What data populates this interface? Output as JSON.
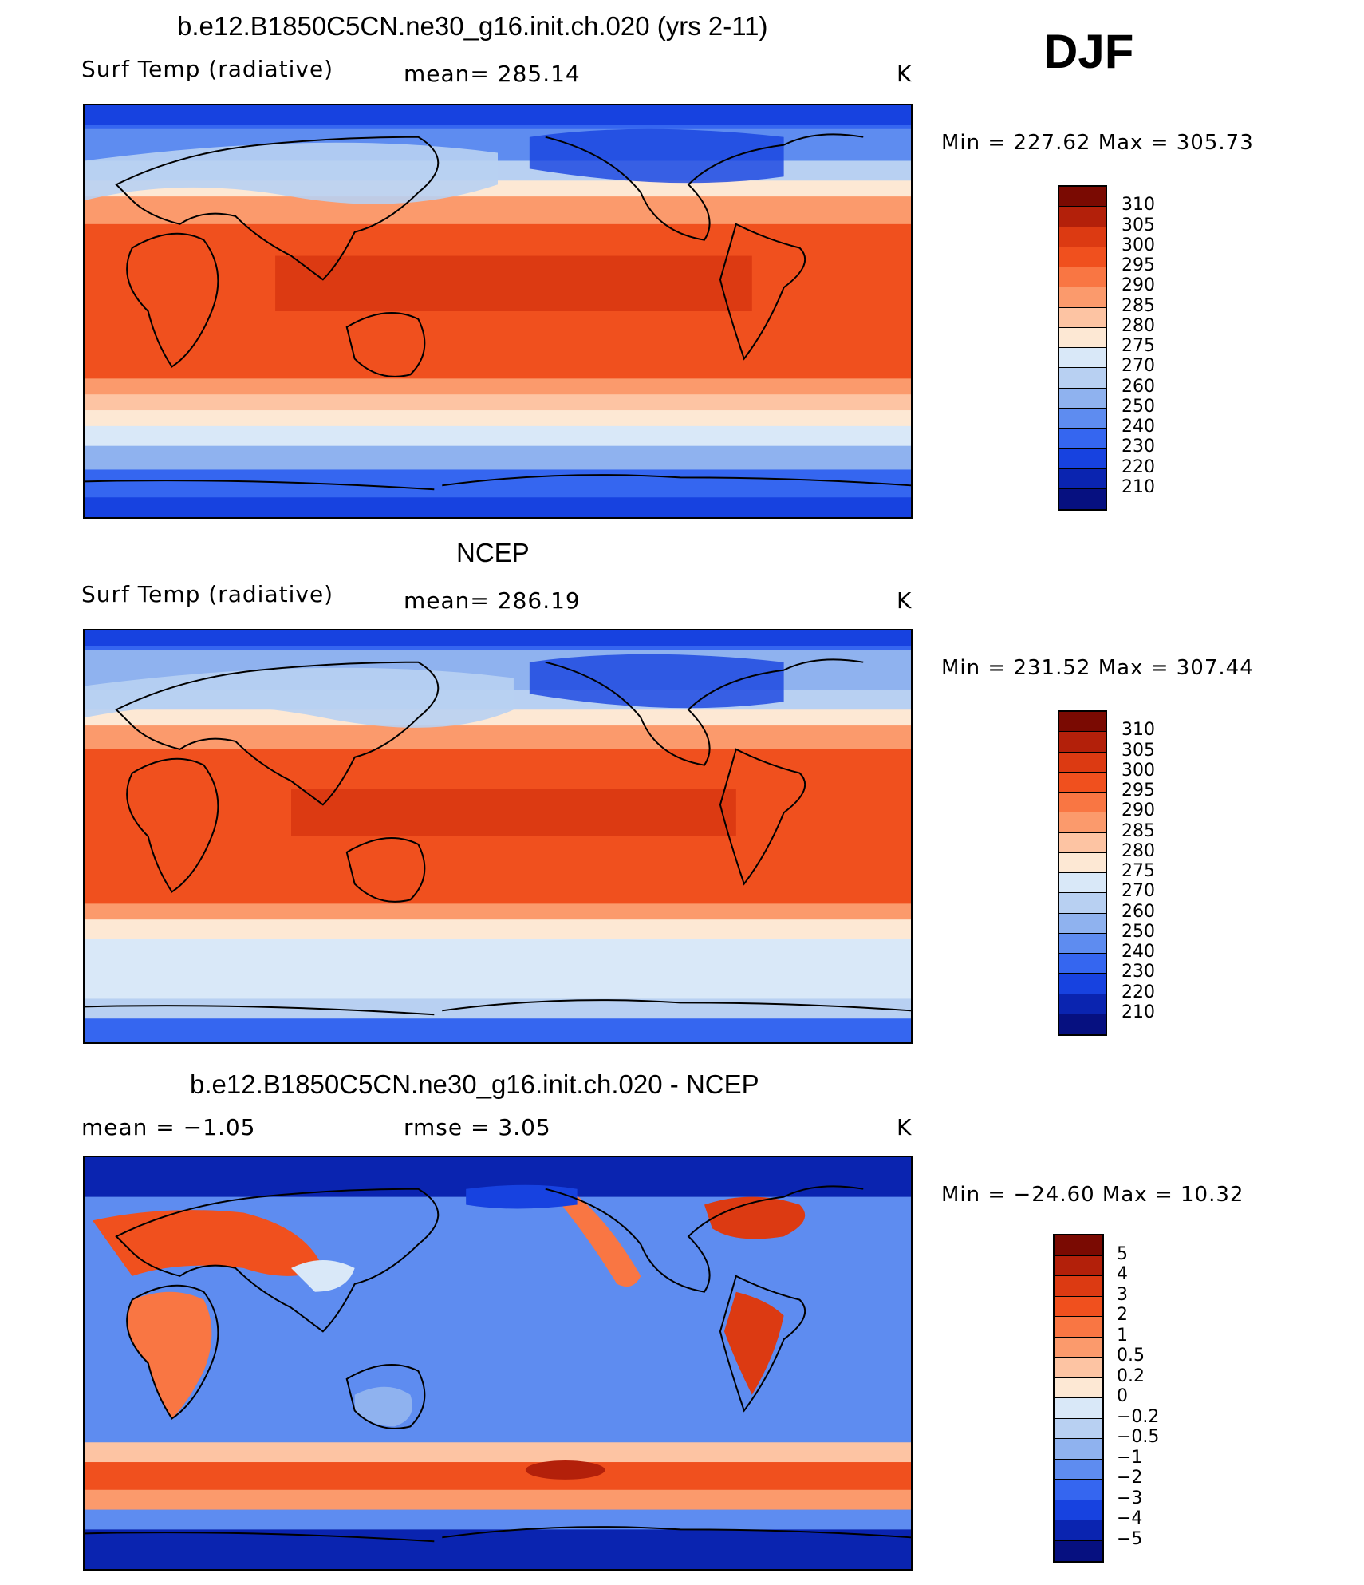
{
  "season": "DJF",
  "panels": [
    {
      "title": "b.e12.B1850C5CN.ne30_g16.init.ch.020 (yrs 2-11)",
      "left_label": "Surf Temp (radiative)",
      "center_label": "mean=  285.14",
      "units": "K",
      "minmax": "Min  =  227.62  Max  =  305.73",
      "colorbar": {
        "labels": [
          "310",
          "305",
          "300",
          "295",
          "290",
          "285",
          "280",
          "275",
          "270",
          "260",
          "250",
          "240",
          "230",
          "220",
          "210"
        ],
        "colors": [
          "#7a0a02",
          "#b3200a",
          "#dc3a12",
          "#f0501e",
          "#f97643",
          "#fb9a6c",
          "#fdc4a3",
          "#fde8d4",
          "#d9e8f8",
          "#b8d0f2",
          "#8fb2ef",
          "#5e8cf0",
          "#3566f0",
          "#1742e0",
          "#0a24b0",
          "#061080"
        ]
      },
      "map_style": "model"
    },
    {
      "title": "NCEP",
      "left_label": "Surf Temp (radiative)",
      "center_label": "mean=  286.19",
      "units": "K",
      "minmax": "Min  =  231.52  Max  =  307.44",
      "colorbar": {
        "labels": [
          "310",
          "305",
          "300",
          "295",
          "290",
          "285",
          "280",
          "275",
          "270",
          "260",
          "250",
          "240",
          "230",
          "220",
          "210"
        ],
        "colors": [
          "#7a0a02",
          "#b3200a",
          "#dc3a12",
          "#f0501e",
          "#f97643",
          "#fb9a6c",
          "#fdc4a3",
          "#fde8d4",
          "#d9e8f8",
          "#b8d0f2",
          "#8fb2ef",
          "#5e8cf0",
          "#3566f0",
          "#1742e0",
          "#0a24b0",
          "#061080"
        ]
      },
      "map_style": "obs"
    },
    {
      "title": "b.e12.B1850C5CN.ne30_g16.init.ch.020 - NCEP",
      "left_label": "mean  =    −1.05",
      "center_label": "rmse  =     3.05",
      "units": "K",
      "minmax": "Min  =  −24.60  Max  =    10.32",
      "colorbar": {
        "labels": [
          "5",
          "4",
          "3",
          "2",
          "1",
          "0.5",
          "0.2",
          "0",
          "−0.2",
          "−0.5",
          "−1",
          "−2",
          "−3",
          "−4",
          "−5"
        ],
        "colors": [
          "#7a0a02",
          "#b3200a",
          "#dc3a12",
          "#f0501e",
          "#f97643",
          "#fb9a6c",
          "#fdc4a3",
          "#fde8d4",
          "#d9e8f8",
          "#b8d0f2",
          "#8fb2ef",
          "#5e8cf0",
          "#3566f0",
          "#1742e0",
          "#0a24b0",
          "#061080"
        ]
      },
      "map_style": "diff"
    }
  ]
}
